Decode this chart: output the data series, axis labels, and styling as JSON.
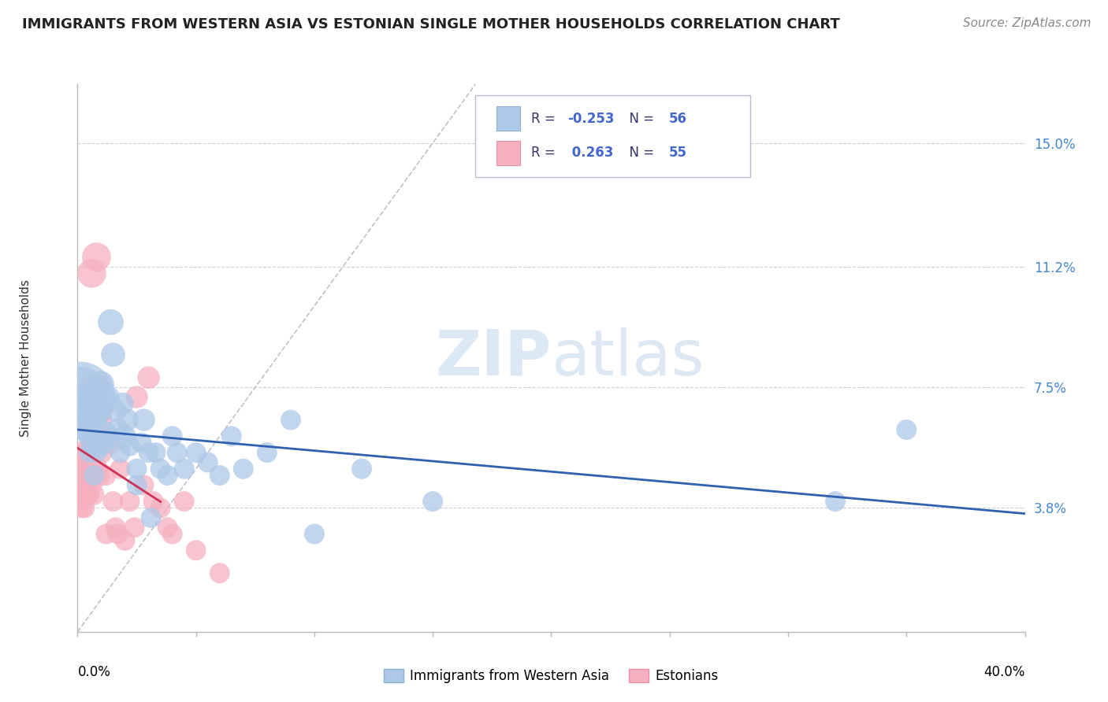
{
  "title": "IMMIGRANTS FROM WESTERN ASIA VS ESTONIAN SINGLE MOTHER HOUSEHOLDS CORRELATION CHART",
  "source": "Source: ZipAtlas.com",
  "ylabel": "Single Mother Households",
  "ytick_labels": [
    "3.8%",
    "7.5%",
    "11.2%",
    "15.0%"
  ],
  "ytick_values": [
    0.038,
    0.075,
    0.112,
    0.15
  ],
  "xlim": [
    0.0,
    0.4
  ],
  "ylim": [
    0.0,
    0.168
  ],
  "legend_blue_r": "-0.253",
  "legend_blue_n": "56",
  "legend_pink_r": "0.263",
  "legend_pink_n": "55",
  "legend_label_blue": "Immigrants from Western Asia",
  "legend_label_pink": "Estonians",
  "blue_color": "#adc8e8",
  "pink_color": "#f5b0c0",
  "blue_line_color": "#3060b0",
  "pink_line_color": "#cc3355",
  "diag_line_color": "#c0c0cc",
  "watermark_color": "#dce8f4",
  "blue_scatter_x": [
    0.001,
    0.002,
    0.003,
    0.003,
    0.004,
    0.004,
    0.005,
    0.005,
    0.005,
    0.006,
    0.006,
    0.007,
    0.007,
    0.008,
    0.008,
    0.009,
    0.01,
    0.01,
    0.011,
    0.011,
    0.012,
    0.013,
    0.013,
    0.014,
    0.015,
    0.016,
    0.017,
    0.018,
    0.019,
    0.02,
    0.021,
    0.022,
    0.025,
    0.025,
    0.027,
    0.028,
    0.03,
    0.031,
    0.033,
    0.035,
    0.038,
    0.04,
    0.042,
    0.045,
    0.05,
    0.055,
    0.06,
    0.065,
    0.07,
    0.08,
    0.09,
    0.1,
    0.12,
    0.15,
    0.32,
    0.35
  ],
  "blue_scatter_y": [
    0.072,
    0.075,
    0.068,
    0.062,
    0.072,
    0.065,
    0.07,
    0.06,
    0.055,
    0.063,
    0.058,
    0.067,
    0.048,
    0.065,
    0.055,
    0.068,
    0.076,
    0.057,
    0.073,
    0.058,
    0.061,
    0.072,
    0.059,
    0.095,
    0.085,
    0.068,
    0.062,
    0.055,
    0.07,
    0.06,
    0.065,
    0.057,
    0.05,
    0.045,
    0.058,
    0.065,
    0.055,
    0.035,
    0.055,
    0.05,
    0.048,
    0.06,
    0.055,
    0.05,
    0.055,
    0.052,
    0.048,
    0.06,
    0.05,
    0.055,
    0.065,
    0.03,
    0.05,
    0.04,
    0.04,
    0.062
  ],
  "blue_scatter_size": [
    600,
    200,
    80,
    60,
    80,
    60,
    80,
    60,
    50,
    60,
    50,
    60,
    50,
    60,
    50,
    60,
    80,
    50,
    60,
    50,
    60,
    60,
    50,
    80,
    70,
    60,
    60,
    50,
    60,
    60,
    60,
    50,
    50,
    50,
    50,
    60,
    50,
    50,
    50,
    50,
    50,
    50,
    50,
    50,
    50,
    50,
    50,
    50,
    50,
    50,
    50,
    50,
    50,
    50,
    50,
    50
  ],
  "pink_scatter_x": [
    0.001,
    0.001,
    0.001,
    0.001,
    0.002,
    0.002,
    0.002,
    0.002,
    0.002,
    0.003,
    0.003,
    0.003,
    0.003,
    0.004,
    0.004,
    0.004,
    0.005,
    0.005,
    0.005,
    0.005,
    0.006,
    0.006,
    0.006,
    0.007,
    0.007,
    0.007,
    0.008,
    0.008,
    0.008,
    0.009,
    0.009,
    0.01,
    0.01,
    0.011,
    0.012,
    0.012,
    0.013,
    0.014,
    0.015,
    0.016,
    0.017,
    0.018,
    0.02,
    0.022,
    0.024,
    0.025,
    0.028,
    0.03,
    0.032,
    0.035,
    0.038,
    0.04,
    0.045,
    0.05,
    0.06
  ],
  "pink_scatter_y": [
    0.048,
    0.045,
    0.052,
    0.04,
    0.048,
    0.042,
    0.055,
    0.038,
    0.05,
    0.045,
    0.042,
    0.048,
    0.038,
    0.055,
    0.05,
    0.042,
    0.055,
    0.048,
    0.062,
    0.042,
    0.11,
    0.07,
    0.045,
    0.075,
    0.068,
    0.042,
    0.115,
    0.075,
    0.05,
    0.065,
    0.048,
    0.068,
    0.055,
    0.058,
    0.03,
    0.048,
    0.06,
    0.058,
    0.04,
    0.032,
    0.03,
    0.05,
    0.028,
    0.04,
    0.032,
    0.072,
    0.045,
    0.078,
    0.04,
    0.038,
    0.032,
    0.03,
    0.04,
    0.025,
    0.018
  ],
  "pink_scatter_size": [
    60,
    50,
    50,
    50,
    60,
    60,
    60,
    50,
    50,
    60,
    60,
    60,
    50,
    60,
    60,
    50,
    60,
    60,
    60,
    50,
    100,
    80,
    50,
    90,
    80,
    50,
    100,
    80,
    60,
    80,
    60,
    70,
    60,
    60,
    50,
    50,
    60,
    60,
    50,
    50,
    50,
    50,
    50,
    50,
    50,
    60,
    50,
    60,
    50,
    50,
    50,
    50,
    50,
    50,
    50
  ]
}
